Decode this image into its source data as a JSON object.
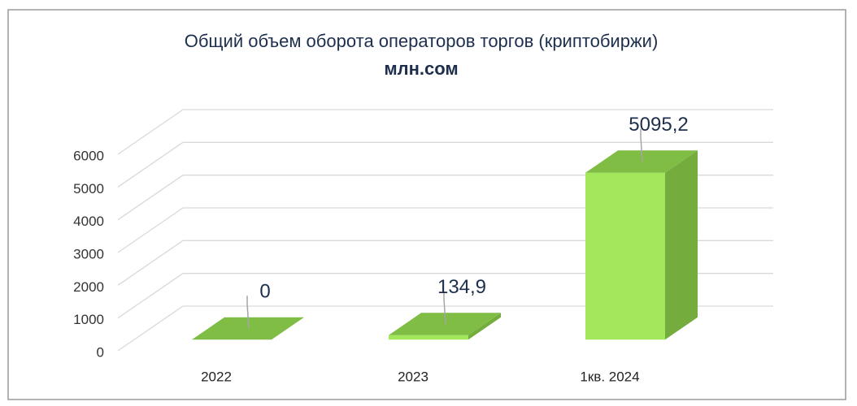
{
  "chart_data": {
    "type": "bar3d",
    "title": "Общий объем оборота операторов торгов (криптобиржи)",
    "subtitle": "млн.сом",
    "categories": [
      "2022",
      "2023",
      "1кв. 2024"
    ],
    "values": [
      0,
      134.9,
      5095.2
    ],
    "value_labels": [
      "0",
      "134,9",
      "5095,2"
    ],
    "colors": {
      "front": "#a2e85a",
      "top": "#7fbd44",
      "side": "#74ad3e"
    },
    "ylim": [
      0,
      6000
    ],
    "yticks": [
      0,
      1000,
      2000,
      3000,
      4000,
      5000,
      6000
    ],
    "grid": true
  }
}
